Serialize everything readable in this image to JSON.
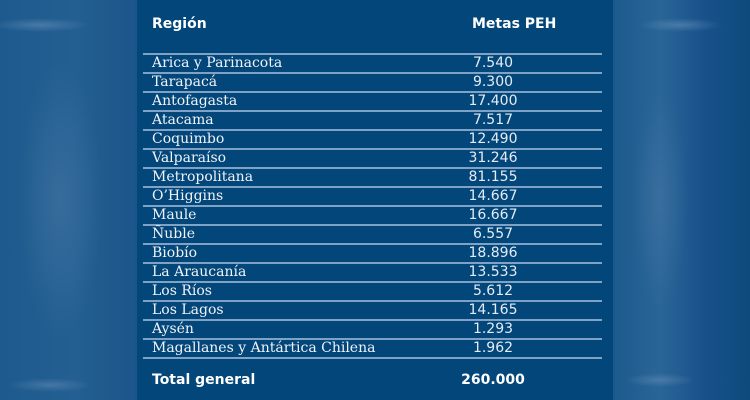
{
  "table": {
    "headers": {
      "region": "Región",
      "metas": "Metas PEH"
    },
    "rows": [
      {
        "region": "Arica y Parinacota",
        "value": "7.540"
      },
      {
        "region": "Tarapacá",
        "value": "9.300"
      },
      {
        "region": "Antofagasta",
        "value": "17.400"
      },
      {
        "region": "Atacama",
        "value": "7.517"
      },
      {
        "region": "Coquimbo",
        "value": "12.490"
      },
      {
        "region": "Valparaíso",
        "value": "31.246"
      },
      {
        "region": "Metropolitana",
        "value": "81.155"
      },
      {
        "region": "O’Higgins",
        "value": "14.667"
      },
      {
        "region": "Maule",
        "value": "16.667"
      },
      {
        "region": "Ñuble",
        "value": "6.557"
      },
      {
        "region": "Biobío",
        "value": "18.896"
      },
      {
        "region": "La Araucanía",
        "value": "13.533"
      },
      {
        "region": "Los Ríos",
        "value": "5.612"
      },
      {
        "region": "Los Lagos",
        "value": "14.165"
      },
      {
        "region": "Aysén",
        "value": "1.293"
      },
      {
        "region": "Magallanes y Antártica Chilena",
        "value": "1.962"
      }
    ],
    "total": {
      "label": "Total general",
      "value": "260.000"
    }
  },
  "colors": {
    "panel": "#03467a",
    "background": "#0f4a7c",
    "rule": "#7ea3c6",
    "text": "#ffffff"
  }
}
